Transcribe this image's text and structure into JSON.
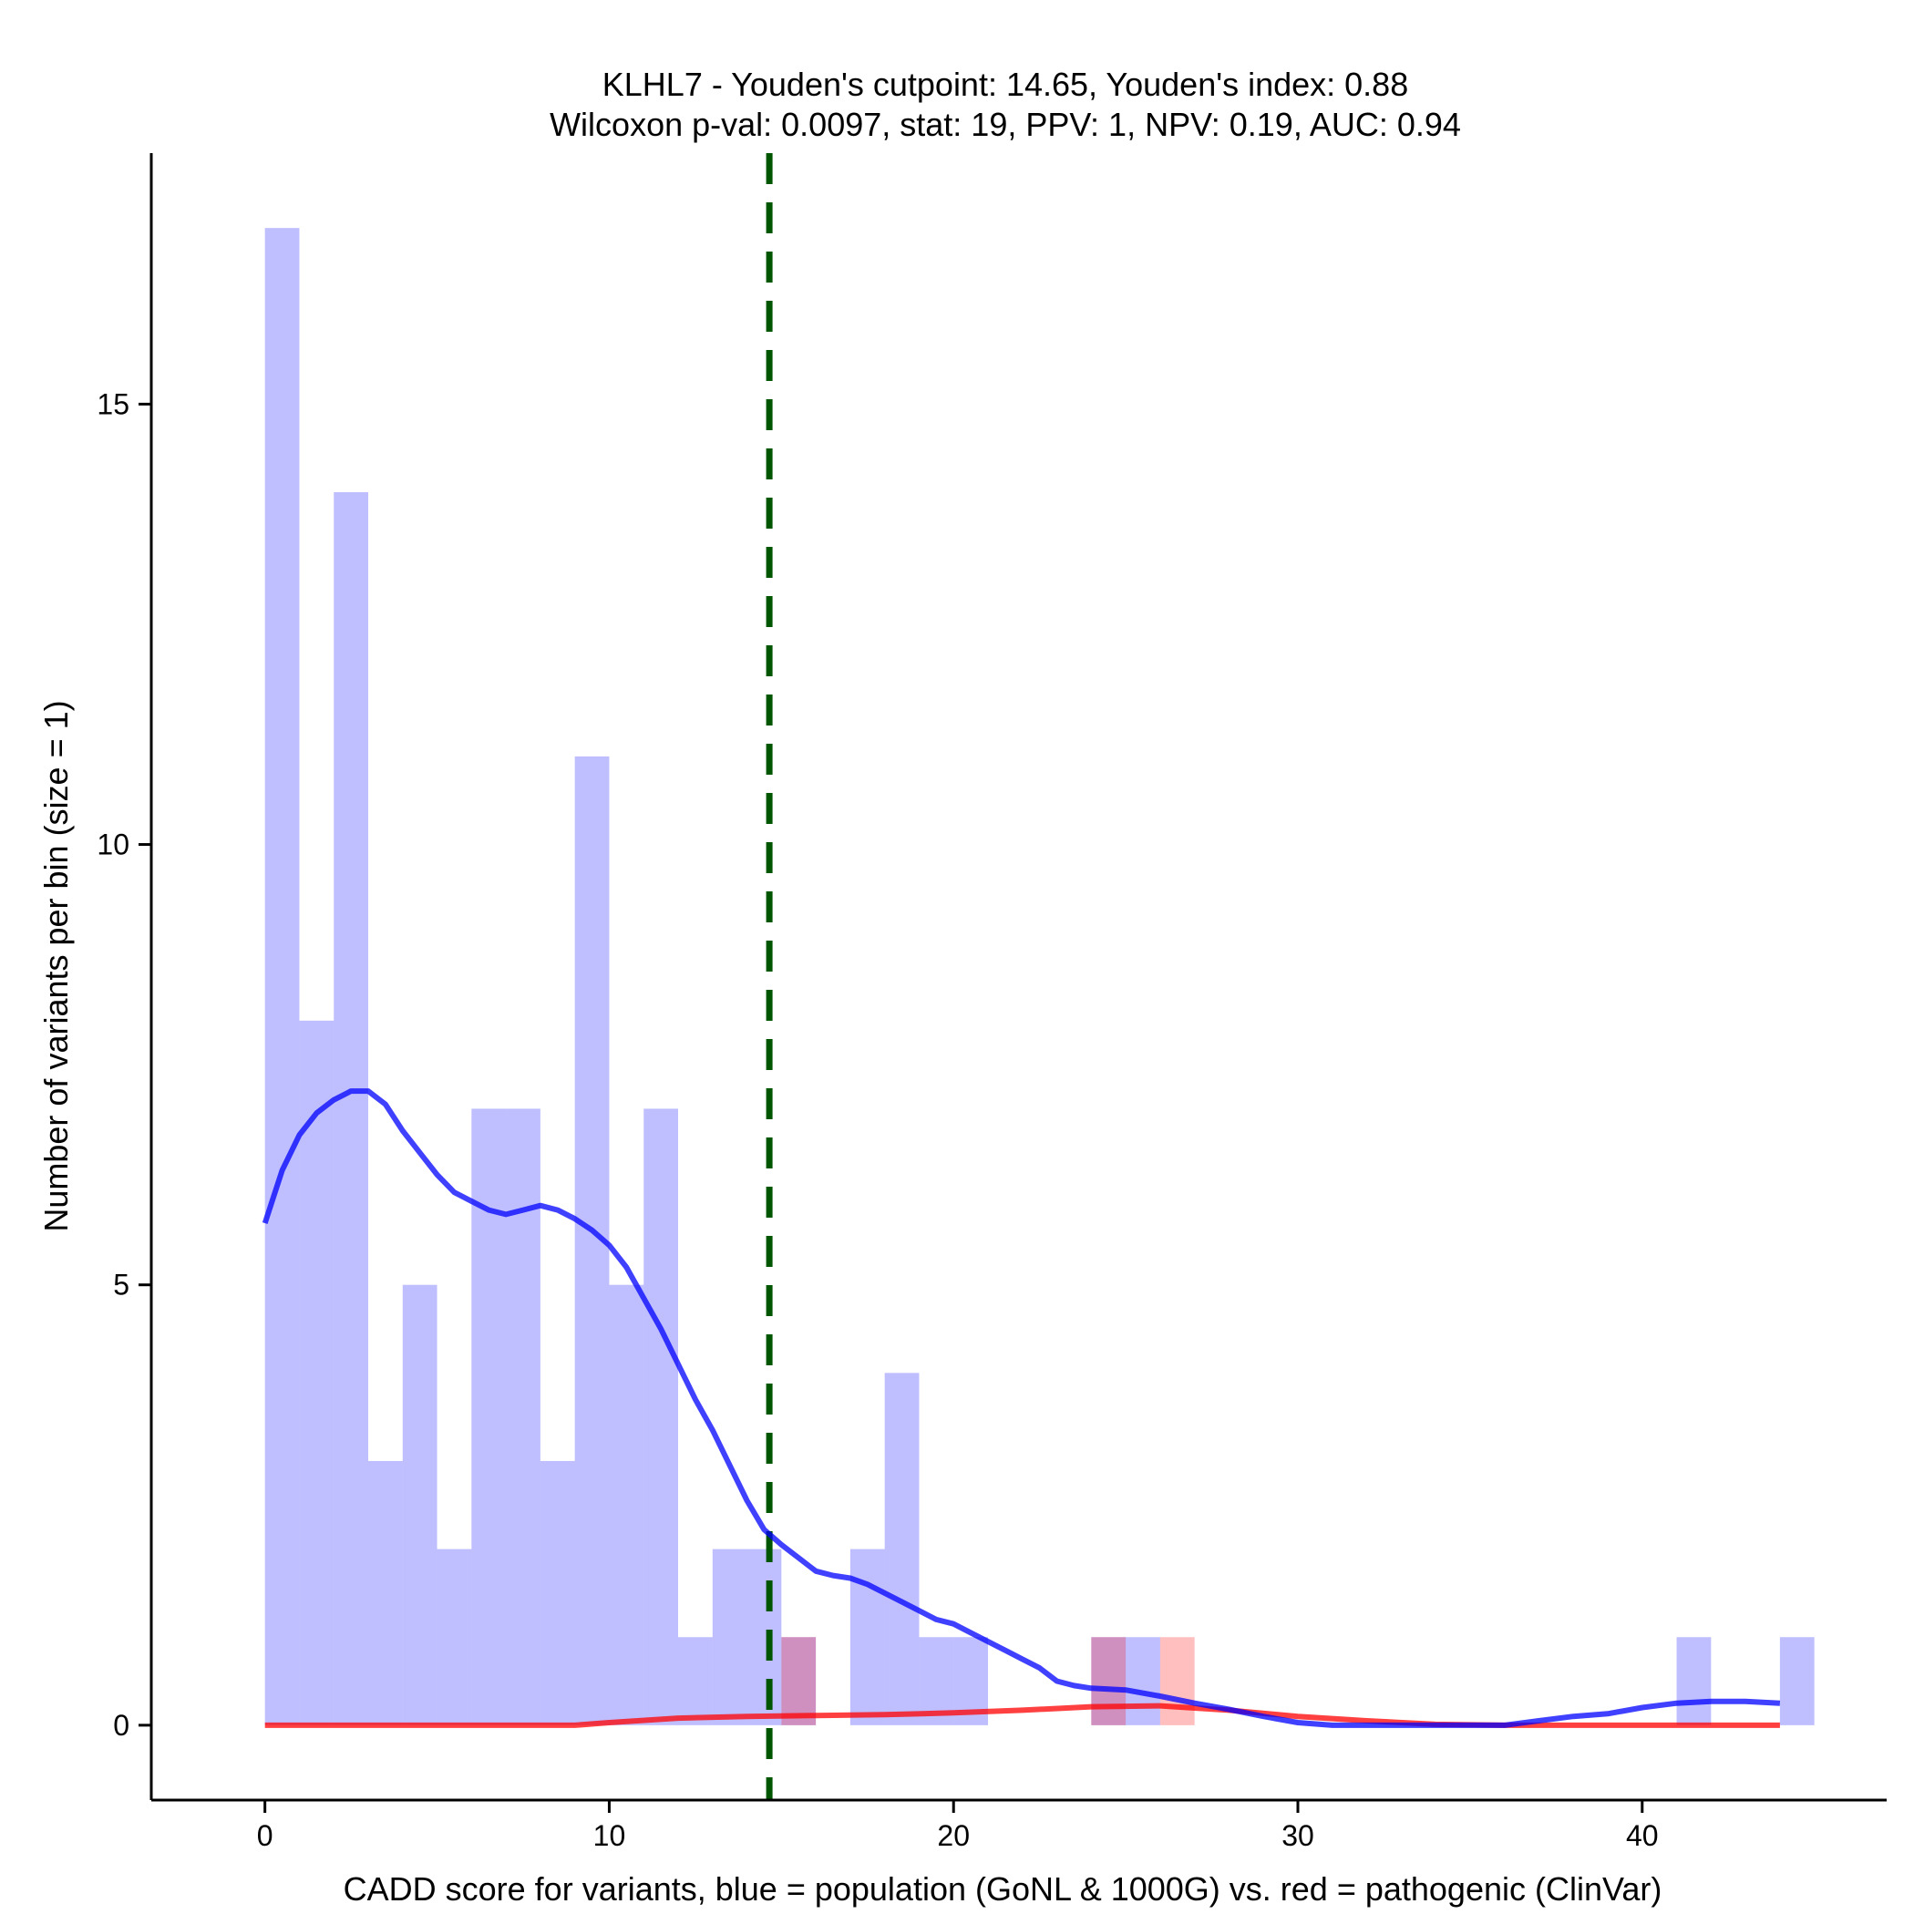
{
  "chart_data": {
    "type": "histogram",
    "title_line1": "KLHL7 - Youden's cutpoint: 14.65, Youden's index: 0.88",
    "title_line2": "Wilcoxon p-val: 0.0097, stat: 19, PPV: 1, NPV: 0.19, AUC: 0.94",
    "xlabel": "CADD score for variants, blue = population (GoNL & 1000G) vs. red = pathogenic (ClinVar)",
    "ylabel": "Number of variants per bin (size = 1)",
    "xlim": [
      -3.3,
      47.1
    ],
    "ylim": [
      -0.85,
      17.85
    ],
    "x_ticks": [
      0,
      10,
      20,
      30,
      40
    ],
    "x_tick_labels": [
      "0",
      "10",
      "20",
      "30",
      "40"
    ],
    "y_ticks": [
      0,
      5,
      10,
      15
    ],
    "y_tick_labels": [
      "0",
      "5",
      "10",
      "15"
    ],
    "bin_width": 1,
    "cutpoint": 14.65,
    "colors": {
      "population": "#0000ff",
      "pathogenic": "#ff0000",
      "cutpoint": "#005500"
    },
    "series": [
      {
        "name": "population (GoNL & 1000G)",
        "bins": [
          {
            "x": 0,
            "count": 17
          },
          {
            "x": 1,
            "count": 8
          },
          {
            "x": 2,
            "count": 14
          },
          {
            "x": 3,
            "count": 3
          },
          {
            "x": 4,
            "count": 5
          },
          {
            "x": 5,
            "count": 2
          },
          {
            "x": 6,
            "count": 7
          },
          {
            "x": 7,
            "count": 7
          },
          {
            "x": 8,
            "count": 3
          },
          {
            "x": 9,
            "count": 11
          },
          {
            "x": 10,
            "count": 5
          },
          {
            "x": 11,
            "count": 7
          },
          {
            "x": 12,
            "count": 1
          },
          {
            "x": 13,
            "count": 2
          },
          {
            "x": 14,
            "count": 2
          },
          {
            "x": 15,
            "count": 1
          },
          {
            "x": 17,
            "count": 2
          },
          {
            "x": 18,
            "count": 4
          },
          {
            "x": 19,
            "count": 1
          },
          {
            "x": 20,
            "count": 1
          },
          {
            "x": 24,
            "count": 1
          },
          {
            "x": 25,
            "count": 1
          },
          {
            "x": 41,
            "count": 1
          },
          {
            "x": 44,
            "count": 1
          }
        ],
        "density": [
          [
            0,
            5.7
          ],
          [
            0.5,
            6.3
          ],
          [
            1,
            6.7
          ],
          [
            1.5,
            6.95
          ],
          [
            2,
            7.1
          ],
          [
            2.5,
            7.2
          ],
          [
            3,
            7.2
          ],
          [
            3.5,
            7.05
          ],
          [
            4,
            6.75
          ],
          [
            4.5,
            6.5
          ],
          [
            5,
            6.25
          ],
          [
            5.5,
            6.05
          ],
          [
            6,
            5.95
          ],
          [
            6.5,
            5.85
          ],
          [
            7,
            5.8
          ],
          [
            7.5,
            5.85
          ],
          [
            8,
            5.9
          ],
          [
            8.5,
            5.85
          ],
          [
            9,
            5.75
          ],
          [
            9.5,
            5.62
          ],
          [
            10,
            5.45
          ],
          [
            10.5,
            5.2
          ],
          [
            11,
            4.85
          ],
          [
            11.5,
            4.5
          ],
          [
            12,
            4.1
          ],
          [
            12.5,
            3.7
          ],
          [
            13,
            3.35
          ],
          [
            13.5,
            2.95
          ],
          [
            14,
            2.55
          ],
          [
            14.5,
            2.22
          ],
          [
            15,
            2.05
          ],
          [
            15.5,
            1.9
          ],
          [
            16,
            1.75
          ],
          [
            16.5,
            1.7
          ],
          [
            17,
            1.67
          ],
          [
            17.5,
            1.6
          ],
          [
            18,
            1.5
          ],
          [
            18.5,
            1.4
          ],
          [
            19,
            1.3
          ],
          [
            19.5,
            1.2
          ],
          [
            20,
            1.15
          ],
          [
            20.5,
            1.05
          ],
          [
            21,
            0.95
          ],
          [
            21.5,
            0.85
          ],
          [
            22,
            0.75
          ],
          [
            22.5,
            0.65
          ],
          [
            23,
            0.5
          ],
          [
            23.5,
            0.45
          ],
          [
            24,
            0.42
          ],
          [
            25,
            0.4
          ],
          [
            26,
            0.33
          ],
          [
            27,
            0.25
          ],
          [
            28,
            0.18
          ],
          [
            29,
            0.1
          ],
          [
            30,
            0.03
          ],
          [
            31,
            0.0
          ],
          [
            32,
            0.0
          ],
          [
            33,
            0.0
          ],
          [
            34,
            0.0
          ],
          [
            35,
            0.0
          ],
          [
            36,
            0.0
          ],
          [
            37,
            0.05
          ],
          [
            38,
            0.1
          ],
          [
            39,
            0.13
          ],
          [
            40,
            0.2
          ],
          [
            41,
            0.25
          ],
          [
            42,
            0.27
          ],
          [
            43,
            0.27
          ],
          [
            44,
            0.25
          ]
        ]
      },
      {
        "name": "pathogenic (ClinVar)",
        "bins": [
          {
            "x": 15,
            "count": 1
          },
          {
            "x": 24,
            "count": 1
          },
          {
            "x": 26,
            "count": 1
          }
        ],
        "density": [
          [
            0,
            0.0
          ],
          [
            5,
            0.0
          ],
          [
            9,
            0.0
          ],
          [
            10,
            0.03
          ],
          [
            12,
            0.08
          ],
          [
            14,
            0.1
          ],
          [
            16,
            0.11
          ],
          [
            18,
            0.12
          ],
          [
            20,
            0.14
          ],
          [
            22,
            0.17
          ],
          [
            24,
            0.21
          ],
          [
            26,
            0.22
          ],
          [
            28,
            0.17
          ],
          [
            30,
            0.1
          ],
          [
            32,
            0.05
          ],
          [
            34,
            0.01
          ],
          [
            36,
            0.0
          ],
          [
            40,
            0.0
          ],
          [
            44,
            0.0
          ]
        ]
      }
    ]
  }
}
